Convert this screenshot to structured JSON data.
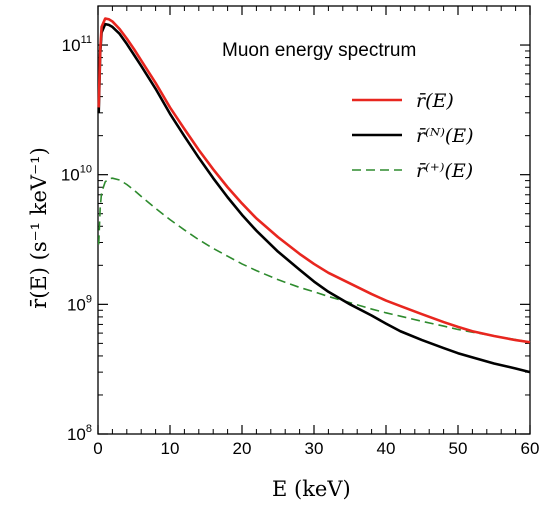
{
  "chart_data": {
    "type": "line",
    "title": "Muon energy spectrum",
    "xlabel": "E   (keV)",
    "ylabel": "r̄(E)   (s⁻¹ keV⁻¹)",
    "xlim": [
      0,
      60
    ],
    "ylim": [
      100000000.0,
      200000000000.0
    ],
    "yscale": "log",
    "grid": false,
    "legend_position": "top-right",
    "x_ticks": [
      {
        "value": 0,
        "label": "0"
      },
      {
        "value": 10,
        "label": "10"
      },
      {
        "value": 20,
        "label": "20"
      },
      {
        "value": 30,
        "label": "30"
      },
      {
        "value": 40,
        "label": "40"
      },
      {
        "value": 50,
        "label": "50"
      },
      {
        "value": 60,
        "label": "60"
      }
    ],
    "y_ticks": [
      {
        "value": 100000000.0,
        "base": "10",
        "exp": "8"
      },
      {
        "value": 1000000000.0,
        "base": "10",
        "exp": "9"
      },
      {
        "value": 10000000000.0,
        "base": "10",
        "exp": "10"
      },
      {
        "value": 100000000000.0,
        "base": "10",
        "exp": "11"
      }
    ],
    "series": [
      {
        "name": "r̄(E)",
        "color": "#e8261f",
        "dash": "solid",
        "x": [
          0.1,
          0.3,
          0.5,
          1.0,
          1.5,
          2,
          3,
          4,
          5,
          6,
          8,
          10,
          12,
          14,
          16,
          18,
          20,
          22,
          25,
          28,
          30,
          32,
          35,
          38,
          40,
          42,
          45,
          48,
          50,
          52,
          55,
          58,
          60
        ],
        "y": [
          33000000000.0,
          90000000000.0,
          138000000000.0,
          160000000000.0,
          158000000000.0,
          152000000000.0,
          133000000000.0,
          112000000000.0,
          93000000000.0,
          76000000000.0,
          51000000000.0,
          33000000000.0,
          22500000000.0,
          15500000000.0,
          11000000000.0,
          8000000000.0,
          6000000000.0,
          4600000000.0,
          3300000000.0,
          2450000000.0,
          2050000000.0,
          1750000000.0,
          1450000000.0,
          1200000000.0,
          1070000000.0,
          970000000.0,
          840000000.0,
          730000000.0,
          670000000.0,
          620000000.0,
          570000000.0,
          530000000.0,
          510000000.0
        ]
      },
      {
        "name": "r̄⁽ᴺ⁾(E)",
        "color": "#000000",
        "dash": "solid",
        "x": [
          0.1,
          0.3,
          0.5,
          1.0,
          1.5,
          2,
          3,
          4,
          5,
          6,
          8,
          10,
          12,
          14,
          16,
          18,
          20,
          22,
          25,
          28,
          30,
          32,
          35,
          38,
          40,
          42,
          45,
          48,
          50,
          52,
          55,
          58,
          60
        ],
        "y": [
          30000000000.0,
          85000000000.0,
          125000000000.0,
          145000000000.0,
          143000000000.0,
          138000000000.0,
          122000000000.0,
          102000000000.0,
          84000000000.0,
          69000000000.0,
          46000000000.0,
          29500000000.0,
          19800000000.0,
          13500000000.0,
          9400000000.0,
          6700000000.0,
          4900000000.0,
          3700000000.0,
          2550000000.0,
          1850000000.0,
          1500000000.0,
          1250000000.0,
          1000000000.0,
          820000000.0,
          710000000.0,
          620000000.0,
          530000000.0,
          460000000.0,
          420000000.0,
          390000000.0,
          350000000.0,
          320000000.0,
          300000000.0
        ]
      },
      {
        "name": "r̄⁽⁺⁾(E)",
        "color": "#2e8b2e",
        "dash": "dashed",
        "x": [
          0.1,
          0.3,
          0.5,
          1.0,
          1.5,
          2,
          3,
          4,
          5,
          6,
          8,
          10,
          12,
          14,
          16,
          18,
          20,
          22,
          25,
          28,
          30,
          32,
          35,
          38,
          40,
          42,
          45,
          48,
          50,
          52,
          55,
          58,
          60
        ],
        "y": [
          2900000000.0,
          5500000000.0,
          7300000000.0,
          8800000000.0,
          9300000000.0,
          9400000000.0,
          9100000000.0,
          8400000000.0,
          7600000000.0,
          6800000000.0,
          5500000000.0,
          4500000000.0,
          3750000000.0,
          3150000000.0,
          2700000000.0,
          2350000000.0,
          2050000000.0,
          1820000000.0,
          1550000000.0,
          1350000000.0,
          1250000000.0,
          1150000000.0,
          1030000000.0,
          920000000.0,
          860000000.0,
          810000000.0,
          740000000.0,
          680000000.0,
          640000000.0,
          610000000.0,
          570000000.0,
          535000000.0,
          510000000.0
        ]
      }
    ]
  }
}
